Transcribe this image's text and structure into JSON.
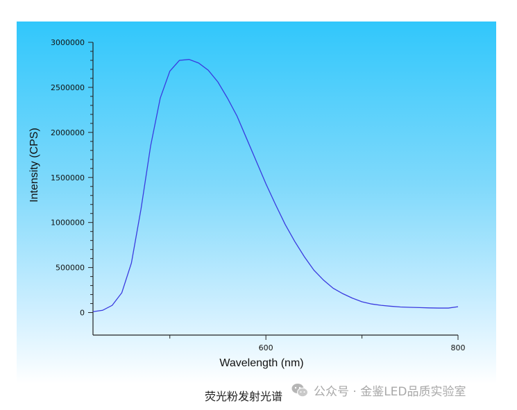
{
  "caption": "荧光粉发射光谱",
  "watermark": {
    "text": "公众号 · 金鉴LED品质实验室",
    "icon": "wechat-icon"
  },
  "colors": {
    "panel_top": "#31c7fb",
    "panel_bottom": "#ffffff",
    "series": "#3a3adf",
    "axis": "#222222"
  },
  "chart_data": {
    "type": "line",
    "title": "",
    "xlabel": "Wavelength (nm)",
    "ylabel": "Intensity (CPS)",
    "xlim": [
      420,
      800
    ],
    "ylim": [
      -250000,
      3000000
    ],
    "x_ticks": [
      {
        "value": 600,
        "label": "600"
      },
      {
        "value": 800,
        "label": "800"
      }
    ],
    "x_minor_ticks": [
      500,
      700
    ],
    "y_ticks": [
      {
        "value": 0,
        "label": "0"
      },
      {
        "value": 500000,
        "label": "500000"
      },
      {
        "value": 1000000,
        "label": "1000000"
      },
      {
        "value": 1500000,
        "label": "1500000"
      },
      {
        "value": 2000000,
        "label": "2000000"
      },
      {
        "value": 2500000,
        "label": "2500000"
      },
      {
        "value": 3000000,
        "label": "3000000"
      }
    ],
    "grid": false,
    "series": [
      {
        "x": [
          420,
          430,
          440,
          450,
          460,
          470,
          480,
          490,
          500,
          510,
          520,
          530,
          540,
          550,
          560,
          570,
          580,
          590,
          600,
          610,
          620,
          630,
          640,
          650,
          660,
          670,
          680,
          690,
          700,
          710,
          720,
          730,
          740,
          750,
          760,
          770,
          780,
          790,
          800
        ],
        "values": [
          10000,
          25000,
          80000,
          220000,
          550000,
          1150000,
          1850000,
          2380000,
          2680000,
          2800000,
          2810000,
          2770000,
          2690000,
          2560000,
          2380000,
          2180000,
          1930000,
          1680000,
          1430000,
          1200000,
          980000,
          790000,
          620000,
          470000,
          360000,
          270000,
          210000,
          160000,
          120000,
          95000,
          80000,
          70000,
          62000,
          58000,
          55000,
          52000,
          50000,
          50000,
          65000
        ]
      }
    ]
  }
}
